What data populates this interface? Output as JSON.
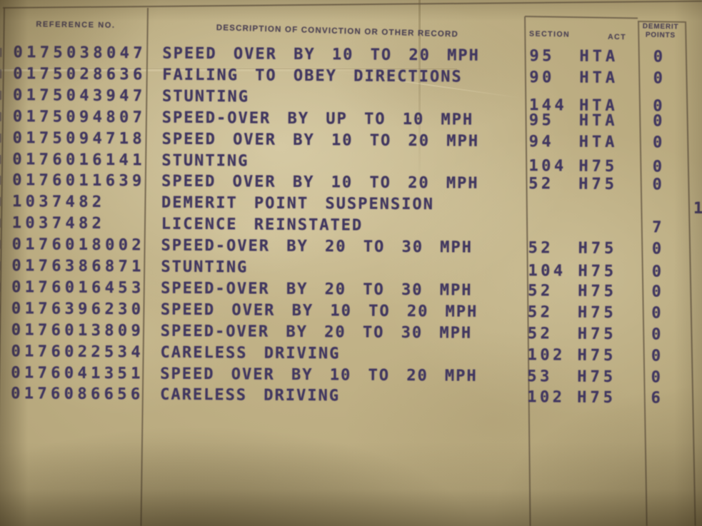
{
  "document": {
    "kind": "driving-record-conviction-table",
    "header": {
      "reference": "REFERENCE NO.",
      "description": "DESCRIPTION OF CONVICTION OR OTHER RECORD",
      "section": "SECTION",
      "act": "ACT",
      "demerit_line1": "DEMERIT",
      "demerit_line2": "POINTS"
    },
    "rows": [
      {
        "ref": "0175038047",
        "desc": "SPEED OVER BY 10 TO 20 MPH",
        "section": "95",
        "act": "HTA",
        "points": "0"
      },
      {
        "ref": "0175028636",
        "desc": "FAILING TO OBEY DIRECTIONS",
        "section": "90",
        "act": "HTA",
        "points": "0"
      },
      {
        "ref": "0175043947",
        "desc": "STUNTING",
        "section": "144",
        "act": "HTA",
        "points": "0"
      },
      {
        "ref": "0175094807",
        "desc": "SPEED-OVER BY UP TO 10 MPH",
        "section": "95",
        "act": "HTA",
        "points": "0"
      },
      {
        "ref": "0175094718",
        "desc": "SPEED OVER BY 10 TO 20 MPH",
        "section": "94",
        "act": "HTA",
        "points": "0"
      },
      {
        "ref": "0176016141",
        "desc": "STUNTING",
        "section": "104",
        "act": "H75",
        "points": "0"
      },
      {
        "ref": "0176011639",
        "desc": "SPEED OVER BY 10 TO 20 MPH",
        "section": "52",
        "act": "H75",
        "points": "0"
      },
      {
        "ref": "1037482",
        "desc": "DEMERIT POINT SUSPENSION",
        "section": "",
        "act": "",
        "points": ""
      },
      {
        "ref": "1037482",
        "desc": "LICENCE REINSTATED",
        "section": "",
        "act": "",
        "points": "7"
      },
      {
        "ref": "0176018002",
        "desc": "SPEED-OVER BY 20 TO 30 MPH",
        "section": "52",
        "act": "H75",
        "points": "0"
      },
      {
        "ref": "0176386871",
        "desc": "STUNTING",
        "section": "104",
        "act": "H75",
        "points": "0"
      },
      {
        "ref": "0176016453",
        "desc": "SPEED-OVER BY 20 TO 30 MPH",
        "section": "52",
        "act": "H75",
        "points": "0"
      },
      {
        "ref": "0176396230",
        "desc": "SPEED OVER BY 10 TO 20 MPH",
        "section": "52",
        "act": "H75",
        "points": "0"
      },
      {
        "ref": "0176013809",
        "desc": "SPEED-OVER BY 20 TO 30 MPH",
        "section": "52",
        "act": "H75",
        "points": "0"
      },
      {
        "ref": "0176022534",
        "desc": "CARELESS DRIVING",
        "section": "102",
        "act": "H75",
        "points": "0"
      },
      {
        "ref": "0176041351",
        "desc": "SPEED OVER BY 10 TO 20 MPH",
        "section": "53",
        "act": "H75",
        "points": "0"
      },
      {
        "ref": "0176086656",
        "desc": "CARELESS DRIVING",
        "section": "102",
        "act": "H75",
        "points": "6"
      }
    ],
    "edge_fragment": "1",
    "colors": {
      "paper": "#c0b186",
      "ink": "#413760",
      "rule_line": "#6d604a",
      "header_ink": "#4e4454"
    }
  }
}
